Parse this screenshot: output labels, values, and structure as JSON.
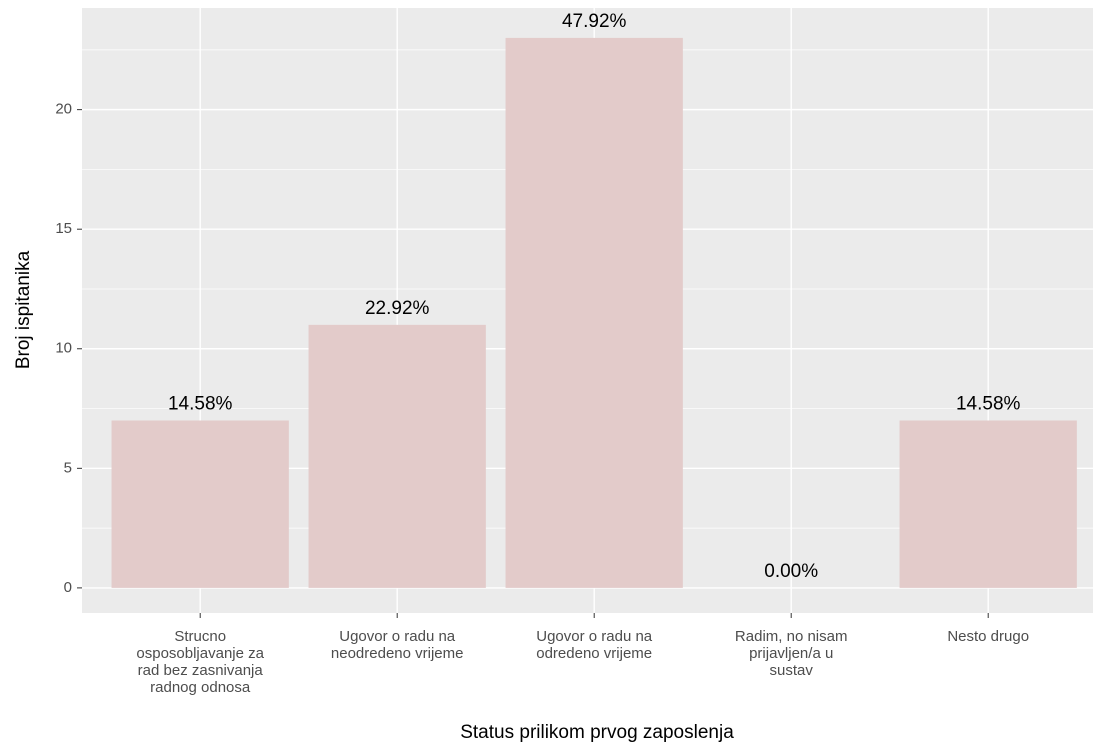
{
  "chart_data": {
    "type": "bar",
    "categories": [
      [
        "Strucno",
        "osposobljavanje za",
        "rad bez zasnivanja",
        "radnog odnosa"
      ],
      [
        "Ugovor o radu na",
        "neodredeno vrijeme"
      ],
      [
        "Ugovor o radu na",
        "odredeno vrijeme"
      ],
      [
        "Radim, no nisam",
        "prijavljen/a u",
        "sustav"
      ],
      [
        "Nesto drugo"
      ]
    ],
    "values": [
      7,
      11,
      23,
      0,
      7
    ],
    "percent_labels": [
      "14.58%",
      "22.92%",
      "47.92%",
      "0.00%",
      "14.58%"
    ],
    "color": "#e3cbca",
    "xlabel": "Status prilikom prvog zaposlenja",
    "ylabel": "Broj ispitanika",
    "ylim": [
      -1.05,
      24.25
    ],
    "yticks": [
      0,
      5,
      10,
      15,
      20
    ],
    "grid": true
  }
}
